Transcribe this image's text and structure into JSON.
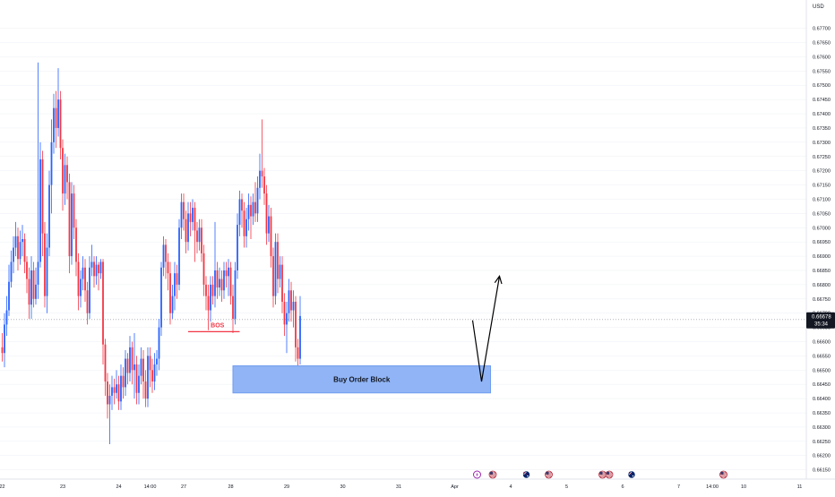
{
  "currency_label": "USD",
  "colors": {
    "up": "#2962ff",
    "down": "#f23645",
    "grid": "#eceff5",
    "price_line": "#b2b5be",
    "order_block_fill": "#90b4f5",
    "order_block_border": "#6f9cf0",
    "bos_line": "#f23645",
    "arrow": "#000000",
    "price_tag_bg": "#131722",
    "price_tag_text": "#ffffff",
    "axis_text": "#131722"
  },
  "price_tag": {
    "price": "0.66678",
    "timer": "35:34"
  },
  "annotations": {
    "bos_label": "BOS",
    "order_block_label": "Buy Order Block"
  },
  "chart_data": {
    "type": "candlestick",
    "title": "",
    "ylim": [
      0.6613,
      0.6779
    ],
    "y_ticks": [
      "0.67700",
      "0.67650",
      "0.67600",
      "0.67550",
      "0.67500",
      "0.67450",
      "0.67400",
      "0.67350",
      "0.67300",
      "0.67250",
      "0.67200",
      "0.67150",
      "0.67100",
      "0.67050",
      "0.67000",
      "0.66950",
      "0.66900",
      "0.66850",
      "0.66800",
      "0.66750",
      "0.66700",
      "0.66650",
      "0.66600",
      "0.66550",
      "0.66500",
      "0.66450",
      "0.66400",
      "0.66350",
      "0.66300",
      "0.66250",
      "0.66200",
      "0.66150"
    ],
    "x_ticks": [
      {
        "label": "22",
        "i": 0
      },
      {
        "label": "23",
        "i": 27
      },
      {
        "label": "24",
        "i": 52
      },
      {
        "label": "14:00",
        "i": 66
      },
      {
        "label": "27",
        "i": 81
      },
      {
        "label": "28",
        "i": 102
      },
      {
        "label": "29",
        "i": 127
      },
      {
        "label": "30",
        "i": 152
      },
      {
        "label": "31",
        "i": 177
      },
      {
        "label": "Apr",
        "i": 202
      },
      {
        "label": "4",
        "i": 227
      },
      {
        "label": "5",
        "i": 252
      },
      {
        "label": "6",
        "i": 277
      },
      {
        "label": "7",
        "i": 302
      },
      {
        "label": "14:00",
        "i": 317
      },
      {
        "label": "10",
        "i": 331
      },
      {
        "label": "11",
        "i": 356
      }
    ],
    "candles": [
      [
        0.6658,
        0.6656,
        0.6663,
        0.6653
      ],
      [
        0.6656,
        0.6666,
        0.667,
        0.6651
      ],
      [
        0.6666,
        0.6671,
        0.6676,
        0.6662
      ],
      [
        0.6671,
        0.6681,
        0.6687,
        0.6669
      ],
      [
        0.6681,
        0.6688,
        0.6692,
        0.6679
      ],
      [
        0.6688,
        0.6693,
        0.6697,
        0.6684
      ],
      [
        0.6693,
        0.6697,
        0.6702,
        0.669
      ],
      [
        0.6697,
        0.6689,
        0.67,
        0.6685
      ],
      [
        0.6689,
        0.6695,
        0.6699,
        0.6687
      ],
      [
        0.6695,
        0.6696,
        0.6701,
        0.669
      ],
      [
        0.6696,
        0.6688,
        0.6698,
        0.6684
      ],
      [
        0.6688,
        0.6682,
        0.669,
        0.6677
      ],
      [
        0.6682,
        0.6673,
        0.6686,
        0.6668
      ],
      [
        0.6673,
        0.6685,
        0.669,
        0.6668
      ],
      [
        0.6685,
        0.6675,
        0.6688,
        0.6672
      ],
      [
        0.6675,
        0.668,
        0.6686,
        0.6673
      ],
      [
        0.668,
        0.6688,
        0.6758,
        0.6675
      ],
      [
        0.6688,
        0.6724,
        0.673,
        0.6686
      ],
      [
        0.6724,
        0.6698,
        0.6727,
        0.669
      ],
      [
        0.6698,
        0.6676,
        0.6702,
        0.6672
      ],
      [
        0.6676,
        0.6693,
        0.6698,
        0.667
      ],
      [
        0.6693,
        0.6715,
        0.672,
        0.669
      ],
      [
        0.6715,
        0.673,
        0.6738,
        0.6705
      ],
      [
        0.673,
        0.6742,
        0.6747,
        0.6726
      ],
      [
        0.6742,
        0.6735,
        0.6748,
        0.6728
      ],
      [
        0.6735,
        0.6745,
        0.6756,
        0.6732
      ],
      [
        0.6745,
        0.6728,
        0.6748,
        0.6724
      ],
      [
        0.6728,
        0.6712,
        0.6731,
        0.6706
      ],
      [
        0.6712,
        0.6722,
        0.6726,
        0.6708
      ],
      [
        0.6722,
        0.6716,
        0.6725,
        0.671
      ],
      [
        0.6716,
        0.669,
        0.6719,
        0.6684
      ],
      [
        0.669,
        0.6712,
        0.6716,
        0.6687
      ],
      [
        0.6712,
        0.67,
        0.6715,
        0.6696
      ],
      [
        0.67,
        0.6688,
        0.6703,
        0.6683
      ],
      [
        0.6688,
        0.6676,
        0.6691,
        0.6671
      ],
      [
        0.6676,
        0.6682,
        0.6685,
        0.6672
      ],
      [
        0.6682,
        0.6686,
        0.669,
        0.6678
      ],
      [
        0.6686,
        0.6678,
        0.6689,
        0.6674
      ],
      [
        0.6678,
        0.667,
        0.6681,
        0.6666
      ],
      [
        0.667,
        0.6686,
        0.669,
        0.6668
      ],
      [
        0.6686,
        0.6688,
        0.6694,
        0.6683
      ],
      [
        0.6688,
        0.6683,
        0.669,
        0.6679
      ],
      [
        0.6683,
        0.6687,
        0.669,
        0.668
      ],
      [
        0.6687,
        0.6684,
        0.6688,
        0.6678
      ],
      [
        0.6684,
        0.6688,
        0.6689,
        0.6682
      ],
      [
        0.6688,
        0.6659,
        0.6689,
        0.6652
      ],
      [
        0.6659,
        0.6646,
        0.6661,
        0.6641
      ],
      [
        0.6646,
        0.6638,
        0.6649,
        0.6633
      ],
      [
        0.6638,
        0.6641,
        0.6645,
        0.6624
      ],
      [
        0.6641,
        0.6644,
        0.6648,
        0.6636
      ],
      [
        0.6644,
        0.6642,
        0.6647,
        0.6638
      ],
      [
        0.6642,
        0.6645,
        0.665,
        0.664
      ],
      [
        0.6645,
        0.6639,
        0.6648,
        0.6636
      ],
      [
        0.6639,
        0.6648,
        0.6652,
        0.6636
      ],
      [
        0.6648,
        0.6644,
        0.6651,
        0.664
      ],
      [
        0.6644,
        0.6654,
        0.6657,
        0.6641
      ],
      [
        0.6654,
        0.6649,
        0.6656,
        0.6645
      ],
      [
        0.6649,
        0.6658,
        0.6662,
        0.6646
      ],
      [
        0.6658,
        0.665,
        0.666,
        0.6645
      ],
      [
        0.665,
        0.6652,
        0.6663,
        0.664
      ],
      [
        0.6652,
        0.6642,
        0.6655,
        0.6638
      ],
      [
        0.6642,
        0.6648,
        0.6652,
        0.6638
      ],
      [
        0.6648,
        0.6654,
        0.6658,
        0.6645
      ],
      [
        0.6654,
        0.6646,
        0.6657,
        0.664
      ],
      [
        0.6646,
        0.664,
        0.665,
        0.6637
      ],
      [
        0.664,
        0.6655,
        0.6658,
        0.6637
      ],
      [
        0.6655,
        0.665,
        0.6658,
        0.6644
      ],
      [
        0.665,
        0.6646,
        0.6654,
        0.6642
      ],
      [
        0.6646,
        0.6652,
        0.6656,
        0.6643
      ],
      [
        0.6652,
        0.6654,
        0.6657,
        0.6648
      ],
      [
        0.6654,
        0.6665,
        0.6668,
        0.665
      ],
      [
        0.6665,
        0.6686,
        0.6688,
        0.6662
      ],
      [
        0.6686,
        0.6694,
        0.6697,
        0.6683
      ],
      [
        0.6694,
        0.6688,
        0.6696,
        0.6682
      ],
      [
        0.6688,
        0.6684,
        0.6691,
        0.6678
      ],
      [
        0.6684,
        0.667,
        0.6688,
        0.6666
      ],
      [
        0.667,
        0.6676,
        0.668,
        0.6668
      ],
      [
        0.6676,
        0.6684,
        0.6688,
        0.6671
      ],
      [
        0.6684,
        0.668,
        0.6687,
        0.6675
      ],
      [
        0.668,
        0.67,
        0.6703,
        0.6678
      ],
      [
        0.67,
        0.6709,
        0.6712,
        0.6696
      ],
      [
        0.6709,
        0.6703,
        0.6712,
        0.6699
      ],
      [
        0.6703,
        0.6695,
        0.6706,
        0.6691
      ],
      [
        0.6695,
        0.6705,
        0.6709,
        0.6692
      ],
      [
        0.6705,
        0.6702,
        0.6709,
        0.6697
      ],
      [
        0.6702,
        0.6707,
        0.671,
        0.6699
      ],
      [
        0.6707,
        0.6699,
        0.6709,
        0.6688
      ],
      [
        0.6699,
        0.6695,
        0.6702,
        0.6691
      ],
      [
        0.6695,
        0.67,
        0.6703,
        0.6692
      ],
      [
        0.67,
        0.6691,
        0.6703,
        0.6688
      ],
      [
        0.6691,
        0.668,
        0.6694,
        0.6676
      ],
      [
        0.668,
        0.6676,
        0.6683,
        0.6671
      ],
      [
        0.6676,
        0.6671,
        0.668,
        0.6664
      ],
      [
        0.6671,
        0.668,
        0.6683,
        0.6667
      ],
      [
        0.668,
        0.6676,
        0.6683,
        0.6673
      ],
      [
        0.6676,
        0.6685,
        0.6702,
        0.6672
      ],
      [
        0.6685,
        0.6679,
        0.6688,
        0.6675
      ],
      [
        0.6679,
        0.6682,
        0.6686,
        0.6676
      ],
      [
        0.6682,
        0.6678,
        0.6685,
        0.6674
      ],
      [
        0.6678,
        0.6685,
        0.6688,
        0.6675
      ],
      [
        0.6685,
        0.6683,
        0.6688,
        0.6679
      ],
      [
        0.6683,
        0.6686,
        0.6689,
        0.6676
      ],
      [
        0.6686,
        0.6676,
        0.6688,
        0.6673
      ],
      [
        0.6676,
        0.6668,
        0.668,
        0.6663
      ],
      [
        0.6668,
        0.6685,
        0.6688,
        0.6666
      ],
      [
        0.6685,
        0.6701,
        0.6705,
        0.6682
      ],
      [
        0.6701,
        0.671,
        0.6713,
        0.6697
      ],
      [
        0.671,
        0.6706,
        0.6712,
        0.67
      ],
      [
        0.6706,
        0.6697,
        0.6709,
        0.6693
      ],
      [
        0.6697,
        0.6703,
        0.6707,
        0.6693
      ],
      [
        0.6703,
        0.6708,
        0.6712,
        0.6699
      ],
      [
        0.6708,
        0.6704,
        0.6711,
        0.6696
      ],
      [
        0.6704,
        0.6709,
        0.6712,
        0.6701
      ],
      [
        0.6709,
        0.6705,
        0.6716,
        0.6702
      ],
      [
        0.6705,
        0.6714,
        0.6718,
        0.6702
      ],
      [
        0.6714,
        0.672,
        0.6726,
        0.671
      ],
      [
        0.672,
        0.6718,
        0.6738,
        0.6714
      ],
      [
        0.6718,
        0.6712,
        0.6721,
        0.6708
      ],
      [
        0.6712,
        0.6698,
        0.6715,
        0.6694
      ],
      [
        0.6698,
        0.6704,
        0.6708,
        0.6695
      ],
      [
        0.6704,
        0.669,
        0.6707,
        0.6686
      ],
      [
        0.669,
        0.6676,
        0.6693,
        0.6672
      ],
      [
        0.6676,
        0.6695,
        0.6698,
        0.6673
      ],
      [
        0.6695,
        0.6682,
        0.6698,
        0.6677
      ],
      [
        0.6682,
        0.6687,
        0.669,
        0.6679
      ],
      [
        0.6687,
        0.6674,
        0.669,
        0.667
      ],
      [
        0.6674,
        0.6666,
        0.6677,
        0.6662
      ],
      [
        0.6666,
        0.667,
        0.6674,
        0.6656
      ],
      [
        0.667,
        0.6678,
        0.6682,
        0.6667
      ],
      [
        0.6678,
        0.6671,
        0.6681,
        0.6667
      ],
      [
        0.6671,
        0.6674,
        0.6678,
        0.6665
      ],
      [
        0.6674,
        0.6658,
        0.6676,
        0.6653
      ],
      [
        0.6658,
        0.6654,
        0.6661,
        0.665
      ],
      [
        0.6654,
        0.6669,
        0.6676,
        0.6652
      ]
    ],
    "bos": {
      "price": 0.66635,
      "from_i": 83,
      "to_i": 106
    },
    "order_block": {
      "price_top": 0.66515,
      "price_bottom": 0.6642,
      "from_i": 103,
      "to_i": 218
    },
    "projection": [
      {
        "i": 210,
        "price": 0.66675
      },
      {
        "i": 214,
        "price": 0.6646
      },
      {
        "i": 222,
        "price": 0.6683
      }
    ],
    "current_price": 0.66678
  },
  "event_markers": [
    {
      "i": 212,
      "icon": "lightning-icon"
    },
    {
      "i": 219,
      "icon": "us-flag-icon"
    },
    {
      "i": 234,
      "icon": "au-flag-icon"
    },
    {
      "i": 244,
      "icon": "us-flag-icon"
    },
    {
      "i": 268,
      "icon": "us-flag-icon"
    },
    {
      "i": 271,
      "icon": "us-flag-icon"
    },
    {
      "i": 281,
      "icon": "au-flag-icon"
    },
    {
      "i": 322,
      "icon": "us-flag-icon"
    }
  ]
}
